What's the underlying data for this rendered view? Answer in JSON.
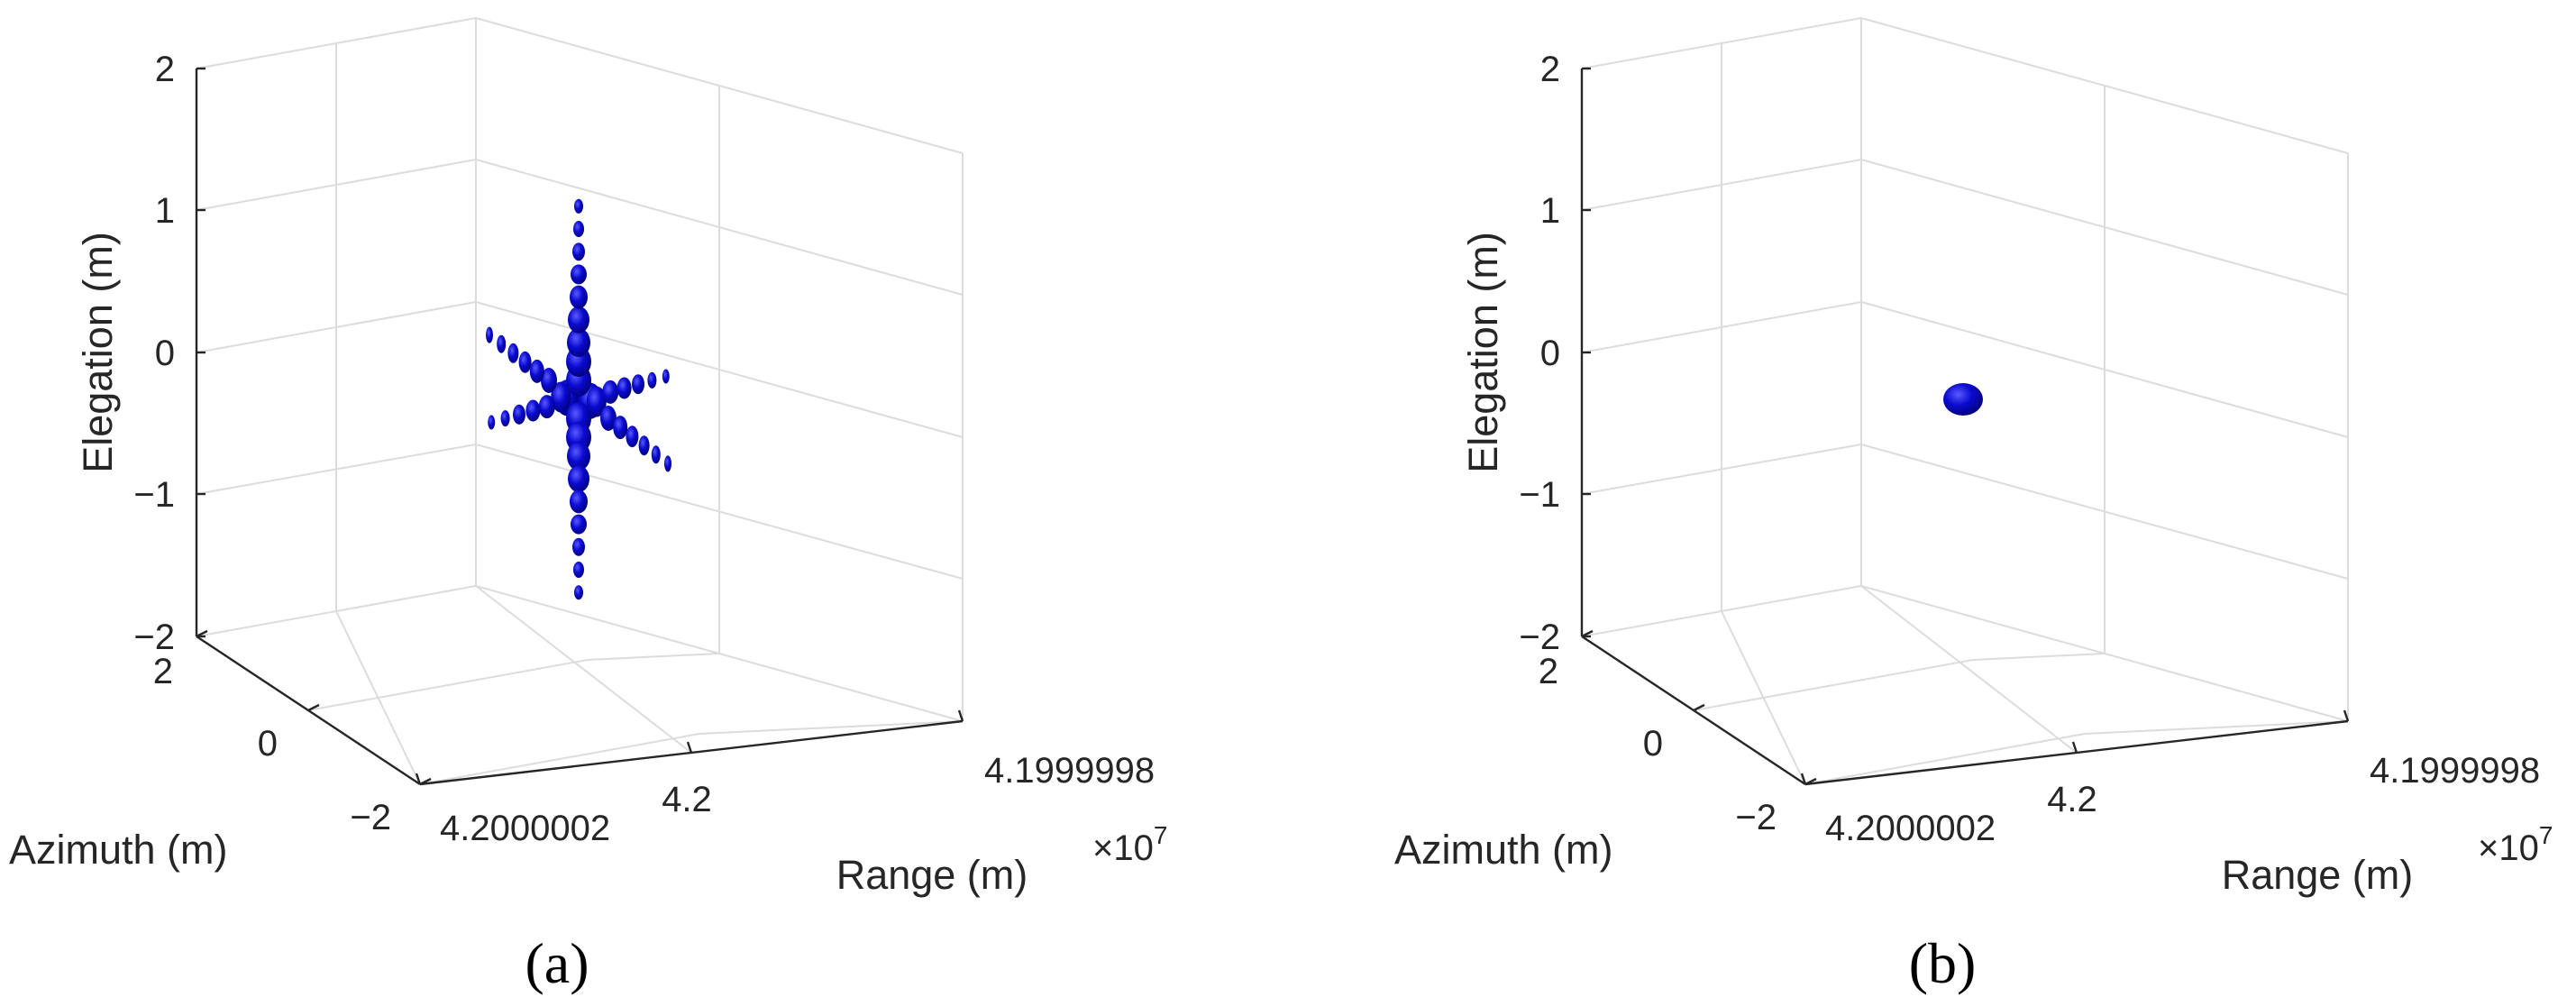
{
  "colors": {
    "isosurface": "#0a0ad0",
    "isosurface_dark": "#00006a",
    "grid": "#dcdcdc",
    "axis": "#262626"
  },
  "chart_data": [
    {
      "type": "isosurface-3d",
      "panel_label": "(a)",
      "xlabel": "Range (m)",
      "ylabel": "Azimuth (m)",
      "zlabel": "Elegation (m)",
      "x_ticks": [
        "4.2000002",
        "4.2",
        "4.1999998"
      ],
      "x_exponent": "×10",
      "x_exponent_power": "7",
      "y_ticks": [
        "2",
        "0",
        "−2"
      ],
      "z_ticks": [
        "2",
        "1",
        "0",
        "−1",
        "−2"
      ],
      "xlim": [
        41999998,
        42000002
      ],
      "ylim": [
        -2,
        2
      ],
      "zlim": [
        -2,
        2
      ],
      "grid": true,
      "blobs": [
        {
          "u": 0.0,
          "v": 0.0,
          "rx": 18,
          "ry": 26
        },
        {
          "u": 0.06,
          "v": 0.0,
          "rx": 15,
          "ry": 22
        },
        {
          "u": -0.06,
          "v": 0.0,
          "rx": 15,
          "ry": 22
        },
        {
          "u": 0.12,
          "v": 0.0,
          "rx": 13,
          "ry": 20
        },
        {
          "u": -0.12,
          "v": 0.0,
          "rx": 13,
          "ry": 20
        },
        {
          "u": 0.18,
          "v": 0.0,
          "rx": 11,
          "ry": 17
        },
        {
          "u": -0.18,
          "v": 0.0,
          "rx": 11,
          "ry": 17
        },
        {
          "u": 0.0,
          "v": 0.1,
          "rx": 14,
          "ry": 18
        },
        {
          "u": 0.0,
          "v": 0.2,
          "rx": 14,
          "ry": 17
        },
        {
          "u": 0.0,
          "v": 0.3,
          "rx": 13,
          "ry": 16
        },
        {
          "u": 0.0,
          "v": 0.42,
          "rx": 12,
          "ry": 15
        },
        {
          "u": 0.0,
          "v": 0.54,
          "rx": 10,
          "ry": 13
        },
        {
          "u": 0.0,
          "v": 0.66,
          "rx": 9,
          "ry": 11
        },
        {
          "u": 0.0,
          "v": 0.78,
          "rx": 7,
          "ry": 10
        },
        {
          "u": 0.0,
          "v": 0.9,
          "rx": 6,
          "ry": 9
        },
        {
          "u": 0.0,
          "v": 1.02,
          "rx": 5,
          "ry": 8
        },
        {
          "u": 0.0,
          "v": -0.1,
          "rx": 14,
          "ry": 18
        },
        {
          "u": 0.0,
          "v": -0.2,
          "rx": 14,
          "ry": 17
        },
        {
          "u": 0.0,
          "v": -0.3,
          "rx": 13,
          "ry": 16
        },
        {
          "u": 0.0,
          "v": -0.42,
          "rx": 12,
          "ry": 15
        },
        {
          "u": 0.0,
          "v": -0.54,
          "rx": 10,
          "ry": 13
        },
        {
          "u": 0.0,
          "v": -0.66,
          "rx": 9,
          "ry": 11
        },
        {
          "u": 0.0,
          "v": -0.78,
          "rx": 7,
          "ry": 10
        },
        {
          "u": 0.0,
          "v": -0.9,
          "rx": 6,
          "ry": 9
        },
        {
          "u": 0.0,
          "v": -1.02,
          "rx": 5,
          "ry": 8
        },
        {
          "u": -0.3,
          "v": 0.08,
          "rx": 9,
          "ry": 14
        },
        {
          "u": -0.42,
          "v": 0.12,
          "rx": 8,
          "ry": 13
        },
        {
          "u": -0.54,
          "v": 0.16,
          "rx": 7,
          "ry": 12
        },
        {
          "u": -0.66,
          "v": 0.2,
          "rx": 6,
          "ry": 11
        },
        {
          "u": -0.78,
          "v": 0.24,
          "rx": 5,
          "ry": 10
        },
        {
          "u": -0.9,
          "v": 0.28,
          "rx": 4,
          "ry": 9
        },
        {
          "u": 0.3,
          "v": -0.08,
          "rx": 9,
          "ry": 14
        },
        {
          "u": 0.42,
          "v": -0.12,
          "rx": 8,
          "ry": 13
        },
        {
          "u": 0.54,
          "v": -0.16,
          "rx": 7,
          "ry": 12
        },
        {
          "u": 0.66,
          "v": -0.2,
          "rx": 6,
          "ry": 11
        },
        {
          "u": 0.78,
          "v": -0.24,
          "rx": 5,
          "ry": 10
        },
        {
          "u": 0.9,
          "v": -0.28,
          "rx": 4,
          "ry": 9
        },
        {
          "u": -0.32,
          "v": -0.06,
          "rx": 9,
          "ry": 13
        },
        {
          "u": -0.46,
          "v": -0.09,
          "rx": 8,
          "ry": 12
        },
        {
          "u": -0.6,
          "v": -0.12,
          "rx": 7,
          "ry": 11
        },
        {
          "u": -0.74,
          "v": -0.15,
          "rx": 5,
          "ry": 9
        },
        {
          "u": -0.88,
          "v": -0.18,
          "rx": 4,
          "ry": 8
        },
        {
          "u": 0.32,
          "v": 0.06,
          "rx": 9,
          "ry": 13
        },
        {
          "u": 0.46,
          "v": 0.09,
          "rx": 8,
          "ry": 12
        },
        {
          "u": 0.6,
          "v": 0.12,
          "rx": 7,
          "ry": 11
        },
        {
          "u": 0.74,
          "v": 0.15,
          "rx": 5,
          "ry": 9
        },
        {
          "u": 0.88,
          "v": 0.18,
          "rx": 4,
          "ry": 8
        }
      ]
    },
    {
      "type": "isosurface-3d",
      "panel_label": "(b)",
      "xlabel": "Range (m)",
      "ylabel": "Azimuth (m)",
      "zlabel": "Elegation (m)",
      "x_ticks": [
        "4.2000002",
        "4.2",
        "4.1999998"
      ],
      "x_exponent": "×10",
      "x_exponent_power": "7",
      "y_ticks": [
        "2",
        "0",
        "−2"
      ],
      "z_ticks": [
        "2",
        "1",
        "0",
        "−1",
        "−2"
      ],
      "xlim": [
        41999998,
        42000002
      ],
      "ylim": [
        -2,
        2
      ],
      "zlim": [
        -2,
        2
      ],
      "grid": true,
      "blobs": [
        {
          "u": 0.0,
          "v": 0.0,
          "rx": 22,
          "ry": 18
        }
      ]
    }
  ]
}
